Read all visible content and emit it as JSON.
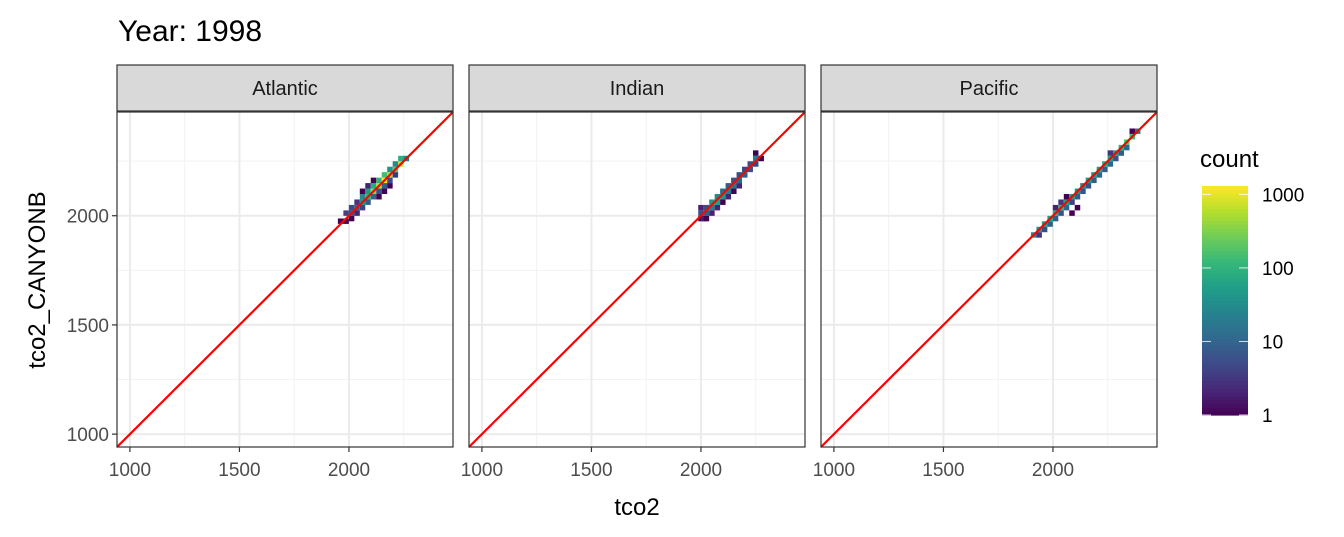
{
  "chart_data": {
    "type": "heatmap",
    "title": "Year: 1998",
    "xlabel": "tco2",
    "ylabel": "tco2_CANYONB",
    "xlim": [
      941,
      2475
    ],
    "ylim": [
      941,
      2475
    ],
    "x_ticks": [
      1000,
      1500,
      2000
    ],
    "y_ticks": [
      1000,
      1500,
      2000
    ],
    "grid": true,
    "reference_line": {
      "slope": 1,
      "intercept": 0,
      "color": "#ff0000"
    },
    "bin_width": 25,
    "legend": {
      "title": "count",
      "scale": "log10",
      "ticks": [
        1,
        10,
        100,
        1000
      ],
      "range": [
        1,
        1300
      ],
      "placement": "right",
      "palette": "viridis"
    },
    "facets": [
      {
        "label": "Atlantic",
        "bins": [
          [
            1962,
            1975,
            1
          ],
          [
            1987,
            1975,
            1
          ],
          [
            1987,
            2012,
            4
          ],
          [
            2012,
            2012,
            6
          ],
          [
            2012,
            2037,
            5
          ],
          [
            2012,
            1987,
            1
          ],
          [
            2037,
            2037,
            10
          ],
          [
            2037,
            2062,
            3
          ],
          [
            2037,
            2012,
            2
          ],
          [
            2062,
            2062,
            40
          ],
          [
            2062,
            2087,
            30
          ],
          [
            2062,
            2037,
            4
          ],
          [
            2062,
            2112,
            1
          ],
          [
            2087,
            2087,
            120
          ],
          [
            2087,
            2112,
            50
          ],
          [
            2087,
            2062,
            8
          ],
          [
            2087,
            2137,
            2
          ],
          [
            2112,
            2112,
            400
          ],
          [
            2112,
            2137,
            80
          ],
          [
            2112,
            2087,
            10
          ],
          [
            2112,
            2162,
            1
          ],
          [
            2137,
            2137,
            600
          ],
          [
            2137,
            2162,
            100
          ],
          [
            2137,
            2112,
            6
          ],
          [
            2137,
            2087,
            1
          ],
          [
            2162,
            2162,
            1300
          ],
          [
            2162,
            2187,
            150
          ],
          [
            2162,
            2137,
            8
          ],
          [
            2162,
            2112,
            1
          ],
          [
            2187,
            2187,
            500
          ],
          [
            2187,
            2212,
            40
          ],
          [
            2187,
            2162,
            5
          ],
          [
            2187,
            2137,
            1
          ],
          [
            2212,
            2212,
            200
          ],
          [
            2212,
            2237,
            30
          ],
          [
            2212,
            2187,
            3
          ],
          [
            2237,
            2237,
            700
          ],
          [
            2237,
            2262,
            90
          ],
          [
            2262,
            2262,
            20
          ]
        ]
      },
      {
        "label": "Indian",
        "bins": [
          [
            2000,
            1987,
            1
          ],
          [
            2000,
            2012,
            6
          ],
          [
            2000,
            2037,
            2
          ],
          [
            2012,
            1987,
            2
          ],
          [
            2025,
            2012,
            8
          ],
          [
            2025,
            2037,
            5
          ],
          [
            2025,
            1987,
            1
          ],
          [
            2050,
            2037,
            20
          ],
          [
            2050,
            2062,
            40
          ],
          [
            2050,
            2012,
            2
          ],
          [
            2075,
            2062,
            60
          ],
          [
            2075,
            2087,
            30
          ],
          [
            2075,
            2037,
            2
          ],
          [
            2100,
            2087,
            40
          ],
          [
            2100,
            2112,
            10
          ],
          [
            2100,
            2062,
            1
          ],
          [
            2125,
            2112,
            20
          ],
          [
            2125,
            2137,
            8
          ],
          [
            2125,
            2087,
            2
          ],
          [
            2150,
            2137,
            15
          ],
          [
            2150,
            2162,
            6
          ],
          [
            2150,
            2112,
            1
          ],
          [
            2175,
            2162,
            10
          ],
          [
            2175,
            2187,
            5
          ],
          [
            2175,
            2137,
            2
          ],
          [
            2200,
            2187,
            8
          ],
          [
            2200,
            2212,
            4
          ],
          [
            2225,
            2212,
            6
          ],
          [
            2225,
            2237,
            5
          ],
          [
            2250,
            2237,
            4
          ],
          [
            2250,
            2262,
            20
          ],
          [
            2250,
            2287,
            1
          ],
          [
            2275,
            2262,
            1
          ]
        ]
      },
      {
        "label": "Pacific",
        "bins": [
          [
            1912,
            1912,
            30
          ],
          [
            1937,
            1937,
            40
          ],
          [
            1937,
            1912,
            3
          ],
          [
            1962,
            1962,
            50
          ],
          [
            1962,
            1937,
            5
          ],
          [
            1987,
            1987,
            60
          ],
          [
            1987,
            1962,
            8
          ],
          [
            2012,
            2012,
            80
          ],
          [
            2012,
            1987,
            8
          ],
          [
            2012,
            2037,
            2
          ],
          [
            2037,
            2037,
            100
          ],
          [
            2037,
            2012,
            6
          ],
          [
            2037,
            2062,
            3
          ],
          [
            2062,
            2062,
            60
          ],
          [
            2062,
            2037,
            10
          ],
          [
            2062,
            2087,
            1
          ],
          [
            2087,
            2087,
            50
          ],
          [
            2087,
            2062,
            4
          ],
          [
            2087,
            2012,
            1
          ],
          [
            2112,
            2112,
            40
          ],
          [
            2112,
            2087,
            8
          ],
          [
            2112,
            2037,
            1
          ],
          [
            2137,
            2137,
            30
          ],
          [
            2137,
            2112,
            6
          ],
          [
            2162,
            2162,
            40
          ],
          [
            2162,
            2137,
            6
          ],
          [
            2187,
            2187,
            50
          ],
          [
            2187,
            2162,
            8
          ],
          [
            2212,
            2212,
            60
          ],
          [
            2212,
            2187,
            10
          ],
          [
            2237,
            2237,
            80
          ],
          [
            2237,
            2212,
            8
          ],
          [
            2262,
            2262,
            60
          ],
          [
            2262,
            2237,
            10
          ],
          [
            2262,
            2287,
            3
          ],
          [
            2287,
            2287,
            50
          ],
          [
            2287,
            2262,
            6
          ],
          [
            2312,
            2312,
            100
          ],
          [
            2312,
            2287,
            8
          ],
          [
            2337,
            2337,
            200
          ],
          [
            2337,
            2312,
            10
          ],
          [
            2362,
            2362,
            150
          ],
          [
            2362,
            2387,
            1
          ],
          [
            2387,
            2387,
            20
          ]
        ]
      }
    ]
  }
}
